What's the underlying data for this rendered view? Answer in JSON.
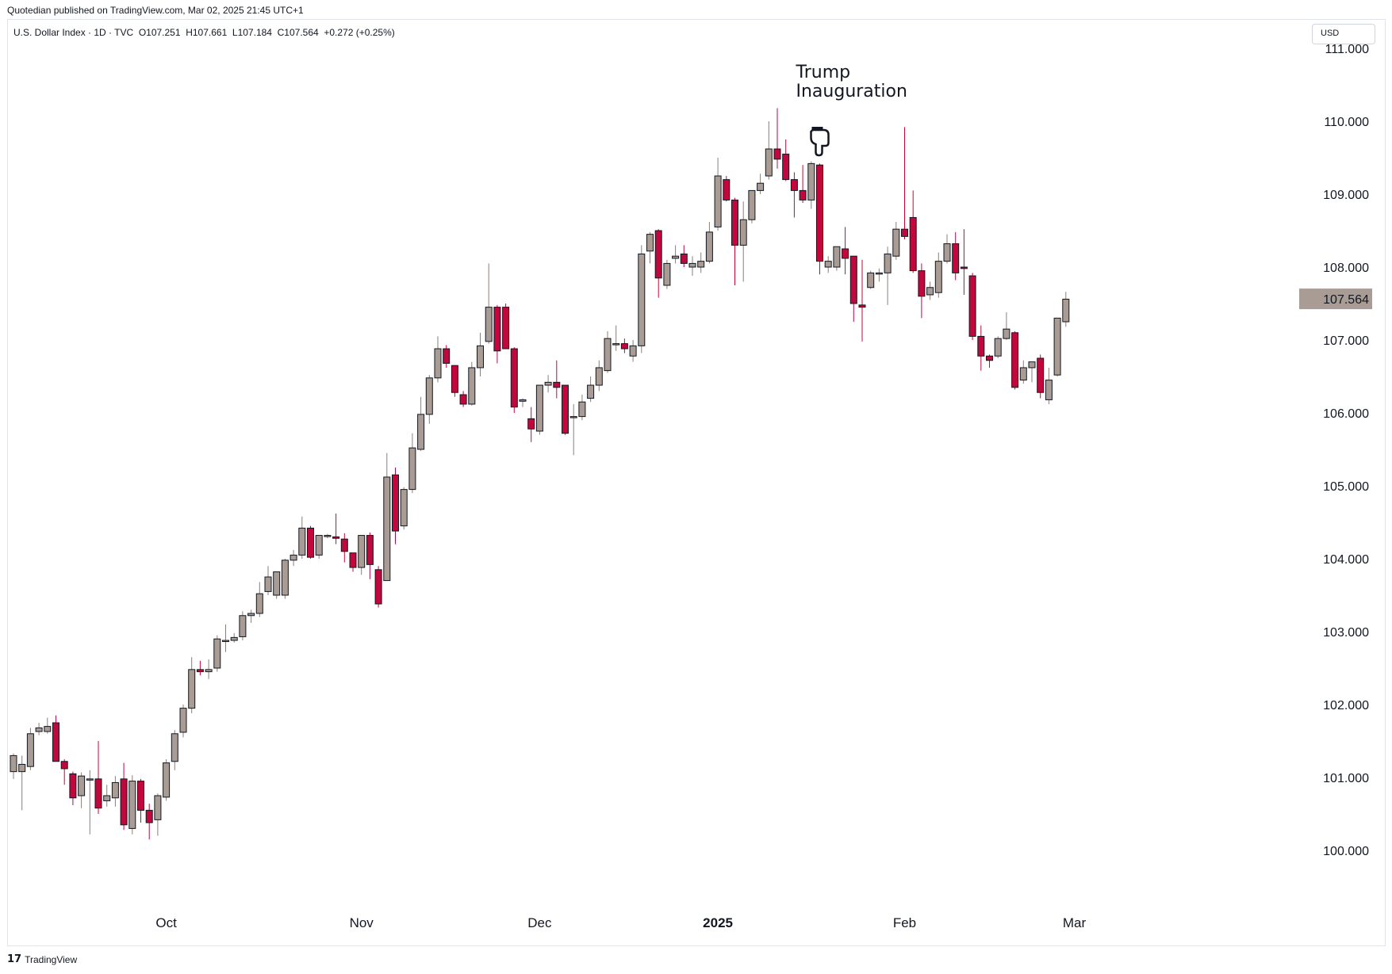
{
  "header": {
    "publisher": "Quotedian published on TradingView.com, Mar 02, 2025 21:45 UTC+1",
    "legend": "U.S. Dollar Index · 1D · TVC  O107.251  H107.661  L107.184  C107.564  +0.272 (+0.25%)",
    "currency_button": "USD"
  },
  "footer": {
    "logo_icon": "tradingview-logo-icon",
    "brand": "TradingView"
  },
  "colors": {
    "up_fill": "#a89c94",
    "down_fill": "#c2073d",
    "wick": "#131722",
    "price_label_bg": "#a89c94"
  },
  "chart_data": {
    "type": "candlestick",
    "title": "U.S. Dollar Index",
    "ylim": [
      99.0,
      111.1
    ],
    "y_ticks": [
      "100.000",
      "101.000",
      "102.000",
      "103.000",
      "104.000",
      "105.000",
      "106.000",
      "107.000",
      "108.000",
      "109.000",
      "110.000",
      "111.000"
    ],
    "x_ticks": [
      {
        "label": "Oct",
        "index": 18
      },
      {
        "label": "Nov",
        "index": 41
      },
      {
        "label": "Dec",
        "index": 62
      },
      {
        "label": "2025",
        "index": 83
      },
      {
        "label": "Feb",
        "index": 105
      },
      {
        "label": "Mar",
        "index": 125
      }
    ],
    "last_price_label": "107.564",
    "last_price": 107.564,
    "annotation": {
      "text_line1": "Trump",
      "text_line2": "Inauguration",
      "index": 95,
      "price": 109.75
    },
    "candles": [
      [
        101.08,
        101.3,
        100.98,
        101.33
      ],
      [
        101.08,
        101.18,
        100.55,
        101.3
      ],
      [
        101.15,
        101.6,
        101.1,
        101.68
      ],
      [
        101.63,
        101.68,
        101.58,
        101.75
      ],
      [
        101.63,
        101.7,
        101.6,
        101.82
      ],
      [
        101.75,
        101.22,
        101.22,
        101.85
      ],
      [
        101.22,
        101.12,
        100.9,
        101.25
      ],
      [
        101.05,
        100.72,
        100.62,
        101.08
      ],
      [
        100.75,
        101.02,
        100.58,
        101.07
      ],
      [
        100.98,
        100.98,
        100.22,
        101.1
      ],
      [
        100.98,
        100.58,
        100.5,
        101.5
      ],
      [
        100.68,
        100.75,
        100.6,
        100.9
      ],
      [
        100.72,
        100.93,
        100.6,
        101.02
      ],
      [
        100.98,
        100.35,
        100.28,
        101.2
      ],
      [
        100.3,
        100.95,
        100.22,
        101.03
      ],
      [
        100.95,
        100.55,
        100.38,
        100.98
      ],
      [
        100.55,
        100.38,
        100.15,
        100.64
      ],
      [
        100.42,
        100.75,
        100.2,
        100.78
      ],
      [
        100.73,
        101.2,
        100.68,
        101.25
      ],
      [
        101.22,
        101.6,
        101.1,
        101.65
      ],
      [
        101.62,
        101.95,
        101.55,
        102.0
      ],
      [
        101.95,
        102.48,
        101.88,
        102.65
      ],
      [
        102.48,
        102.45,
        102.4,
        102.6
      ],
      [
        102.45,
        102.48,
        102.35,
        102.62
      ],
      [
        102.5,
        102.9,
        102.45,
        102.95
      ],
      [
        102.88,
        102.88,
        102.72,
        103.1
      ],
      [
        102.88,
        102.92,
        102.85,
        102.98
      ],
      [
        102.93,
        103.22,
        102.88,
        103.28
      ],
      [
        103.22,
        103.25,
        103.12,
        103.3
      ],
      [
        103.25,
        103.52,
        103.2,
        103.68
      ],
      [
        103.55,
        103.75,
        103.5,
        103.9
      ],
      [
        103.5,
        103.82,
        103.45,
        103.82
      ],
      [
        103.5,
        103.98,
        103.45,
        104.0
      ],
      [
        103.98,
        104.05,
        103.9,
        104.12
      ],
      [
        104.05,
        104.42,
        104.0,
        104.58
      ],
      [
        104.42,
        104.02,
        104.0,
        104.45
      ],
      [
        104.05,
        104.32,
        104.0,
        104.32
      ],
      [
        104.32,
        104.32,
        104.28,
        104.34
      ],
      [
        104.3,
        104.28,
        104.2,
        104.62
      ],
      [
        104.27,
        104.1,
        103.95,
        104.35
      ],
      [
        104.08,
        103.88,
        103.82,
        104.08
      ],
      [
        103.88,
        104.32,
        103.78,
        104.32
      ],
      [
        104.32,
        103.92,
        103.72,
        104.36
      ],
      [
        103.85,
        103.38,
        103.33,
        103.9
      ],
      [
        103.7,
        105.12,
        103.7,
        105.45
      ],
      [
        105.15,
        104.38,
        104.2,
        105.25
      ],
      [
        104.45,
        104.95,
        104.4,
        104.98
      ],
      [
        104.95,
        105.52,
        104.9,
        105.72
      ],
      [
        105.5,
        105.98,
        105.48,
        106.22
      ],
      [
        105.98,
        106.48,
        105.85,
        106.52
      ],
      [
        106.48,
        106.88,
        106.42,
        107.05
      ],
      [
        106.88,
        106.68,
        106.62,
        106.93
      ],
      [
        106.65,
        106.28,
        106.22,
        106.65
      ],
      [
        106.25,
        106.12,
        106.08,
        106.3
      ],
      [
        106.12,
        106.62,
        106.1,
        106.7
      ],
      [
        106.62,
        106.92,
        106.5,
        107.1
      ],
      [
        106.98,
        107.45,
        106.95,
        108.05
      ],
      [
        107.45,
        106.85,
        106.68,
        107.48
      ],
      [
        107.45,
        106.88,
        106.88,
        107.5
      ],
      [
        106.88,
        106.08,
        106.0,
        106.9
      ],
      [
        106.16,
        106.18,
        106.08,
        106.2
      ],
      [
        105.92,
        105.78,
        105.6,
        106.08
      ],
      [
        105.75,
        106.38,
        105.7,
        106.38
      ],
      [
        106.38,
        106.42,
        106.28,
        106.52
      ],
      [
        106.42,
        106.35,
        106.2,
        106.72
      ],
      [
        106.38,
        105.72,
        105.7,
        106.38
      ],
      [
        105.95,
        105.95,
        105.42,
        106.12
      ],
      [
        105.95,
        106.15,
        105.9,
        106.25
      ],
      [
        106.2,
        106.38,
        106.15,
        106.5
      ],
      [
        106.38,
        106.62,
        106.3,
        106.72
      ],
      [
        106.58,
        107.02,
        106.55,
        107.12
      ],
      [
        106.95,
        106.95,
        106.85,
        107.2
      ],
      [
        106.95,
        106.88,
        106.82,
        107.02
      ],
      [
        106.78,
        106.92,
        106.7,
        107.0
      ],
      [
        106.92,
        108.18,
        106.82,
        108.3
      ],
      [
        108.22,
        108.45,
        108.05,
        108.48
      ],
      [
        108.5,
        107.85,
        107.58,
        108.52
      ],
      [
        107.75,
        108.05,
        107.7,
        108.1
      ],
      [
        108.12,
        108.15,
        108.05,
        108.3
      ],
      [
        108.18,
        108.05,
        108.0,
        108.3
      ],
      [
        108.0,
        108.05,
        107.88,
        108.15
      ],
      [
        108.0,
        108.08,
        107.92,
        108.2
      ],
      [
        108.08,
        108.48,
        108.05,
        108.62
      ],
      [
        108.55,
        109.25,
        108.5,
        109.5
      ],
      [
        109.2,
        108.92,
        108.9,
        109.25
      ],
      [
        108.92,
        108.3,
        107.75,
        108.95
      ],
      [
        108.3,
        108.65,
        107.8,
        108.9
      ],
      [
        108.65,
        109.05,
        108.6,
        109.05
      ],
      [
        109.05,
        109.15,
        109.0,
        109.28
      ],
      [
        109.25,
        109.62,
        109.2,
        110.0
      ],
      [
        109.62,
        109.48,
        109.35,
        110.18
      ],
      [
        109.55,
        109.2,
        109.18,
        109.75
      ],
      [
        109.2,
        109.05,
        108.68,
        109.3
      ],
      [
        109.05,
        108.92,
        108.88,
        109.4
      ],
      [
        108.92,
        109.42,
        108.8,
        109.45
      ],
      [
        109.4,
        108.08,
        107.9,
        109.42
      ],
      [
        108.0,
        108.08,
        107.92,
        108.15
      ],
      [
        108.0,
        108.28,
        107.95,
        108.28
      ],
      [
        108.25,
        108.12,
        107.9,
        108.55
      ],
      [
        108.15,
        107.5,
        107.25,
        108.15
      ],
      [
        107.48,
        107.45,
        106.98,
        108.1
      ],
      [
        107.72,
        107.92,
        107.7,
        107.95
      ],
      [
        107.92,
        107.92,
        107.8,
        107.98
      ],
      [
        107.92,
        108.18,
        107.48,
        108.28
      ],
      [
        108.15,
        108.52,
        108.1,
        108.62
      ],
      [
        108.52,
        108.42,
        108.38,
        109.92
      ],
      [
        108.68,
        107.95,
        107.92,
        109.05
      ],
      [
        107.95,
        107.6,
        107.3,
        108.05
      ],
      [
        107.62,
        107.72,
        107.55,
        107.8
      ],
      [
        107.65,
        108.08,
        107.58,
        108.2
      ],
      [
        108.08,
        108.32,
        108.05,
        108.45
      ],
      [
        108.32,
        107.92,
        107.82,
        108.48
      ],
      [
        108.0,
        107.98,
        107.62,
        108.52
      ],
      [
        107.88,
        107.05,
        107.0,
        107.92
      ],
      [
        107.05,
        106.78,
        106.58,
        107.2
      ],
      [
        106.78,
        106.72,
        106.62,
        106.8
      ],
      [
        106.78,
        107.02,
        106.75,
        107.05
      ],
      [
        107.02,
        107.15,
        107.0,
        107.38
      ],
      [
        107.1,
        106.35,
        106.32,
        107.12
      ],
      [
        106.45,
        106.62,
        106.4,
        106.72
      ],
      [
        106.62,
        106.7,
        106.42,
        106.7
      ],
      [
        106.75,
        106.28,
        106.2,
        106.8
      ],
      [
        106.18,
        106.45,
        106.12,
        106.62
      ],
      [
        106.52,
        107.3,
        106.5,
        107.3
      ],
      [
        107.25,
        107.56,
        107.18,
        107.66
      ]
    ]
  }
}
